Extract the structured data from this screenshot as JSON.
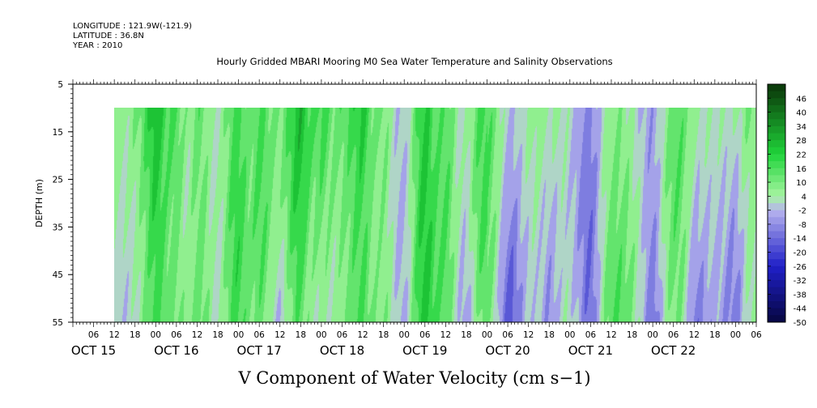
{
  "header": {
    "longitude": "LONGITUDE : 121.9W(-121.9)",
    "latitude": "LATITUDE : 36.8N",
    "year": "YEAR : 2010"
  },
  "chart_data": {
    "type": "heatmap",
    "title": "Hourly Gridded MBARI Mooring M0 Sea Water Temperature and Salinity Observations",
    "xlabel": "V Component of Water Velocity (cm s−1)",
    "ylabel": "DEPTH (m)",
    "y_axis": {
      "range": [
        5,
        55
      ],
      "inverted": true,
      "ticks": [
        5,
        15,
        25,
        35,
        45,
        55
      ],
      "data_range": [
        10,
        55
      ]
    },
    "x_axis": {
      "range_hours": [
        0,
        198
      ],
      "hour_labels": [
        "06",
        "12",
        "18",
        "00",
        "06",
        "12",
        "18",
        "00",
        "06",
        "12",
        "18",
        "00",
        "06",
        "12",
        "18",
        "00",
        "06",
        "12",
        "18",
        "00",
        "06",
        "12",
        "18",
        "00",
        "06",
        "12",
        "18",
        "00",
        "06",
        "12",
        "18",
        "00",
        "06"
      ],
      "day_labels": [
        {
          "label": "OCT 15",
          "hour": 6
        },
        {
          "label": "OCT 16",
          "hour": 30
        },
        {
          "label": "OCT 17",
          "hour": 54
        },
        {
          "label": "OCT 18",
          "hour": 78
        },
        {
          "label": "OCT 19",
          "hour": 102
        },
        {
          "label": "OCT 20",
          "hour": 126
        },
        {
          "label": "OCT 21",
          "hour": 150
        },
        {
          "label": "OCT 22",
          "hour": 174
        }
      ],
      "data_start_hour": 12
    },
    "colorbar": {
      "levels": [
        46,
        40,
        34,
        28,
        22,
        16,
        10,
        4,
        -2,
        -8,
        -14,
        -20,
        -26,
        -32,
        -38,
        -44,
        -50
      ],
      "colors": {
        "dark_green": "#0b3d0b",
        "green": "#1fd33a",
        "light_green": "#a6f5a0",
        "light_blue": "#b7b4ee",
        "blue": "#2020c8",
        "dark_blue": "#060640"
      }
    },
    "field_pattern": {
      "positive_bands_hours": [
        24,
        30,
        36,
        48,
        54,
        66,
        72,
        84,
        90,
        102,
        108
      ],
      "negative_bands_hours": [
        42,
        60,
        96,
        114,
        126,
        138,
        150,
        168,
        180,
        192
      ]
    }
  }
}
